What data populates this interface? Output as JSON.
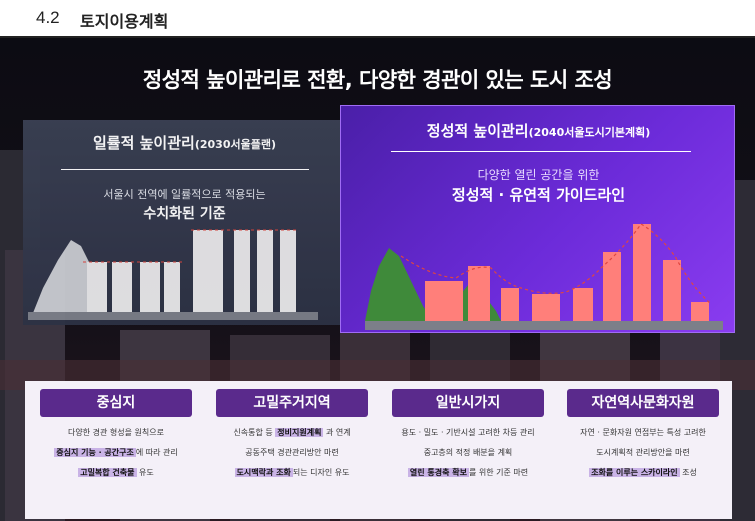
{
  "header": {
    "number": "4.2",
    "title": "토지이용계획"
  },
  "headline": "정성적 높이관리로 전환, 다양한 경관이 있는 도시 조성",
  "left_panel": {
    "title": "일률적 높이관리",
    "title_note": "(2030서울플랜)",
    "subtitle": "서울시 전역에 일률적으로 적용되는",
    "key": "수치화된 기준"
  },
  "right_panel": {
    "title": "정성적 높이관리",
    "title_note": "(2040서울도시기본계획)",
    "subtitle": "다양한 열린 공간을 위한",
    "key": "정성적 · 유연적 가이드라인"
  },
  "cards": [
    {
      "tab": "중심지",
      "lines": [
        {
          "pre": "다양한 경관 형성을 원칙으로",
          "hl": "",
          "post": ""
        },
        {
          "pre": "",
          "hl": "중심지 기능 · 공간구조",
          "post": "에 따라 관리"
        },
        {
          "pre": "",
          "hl": "고밀복합 건축물",
          "post": " 유도"
        }
      ]
    },
    {
      "tab": "고밀주거지역",
      "lines": [
        {
          "pre": "신속통합 등 ",
          "hl": "정비지원계획",
          "post": " 과 연계"
        },
        {
          "pre": "공동주택 경관관리방안 마련",
          "hl": "",
          "post": ""
        },
        {
          "pre": "",
          "hl": "도시맥락과 조화",
          "post": "되는 디자인 유도"
        }
      ]
    },
    {
      "tab": "일반시가지",
      "lines": [
        {
          "pre": "용도 · 밀도 · 기반시설 고려한 차등 관리",
          "hl": "",
          "post": ""
        },
        {
          "pre": "중고층의 적정 배분을 계획",
          "hl": "",
          "post": ""
        },
        {
          "pre": "",
          "hl": "열린 통경축 확보",
          "post": "를 위한 기준 마련"
        }
      ]
    },
    {
      "tab": "자연역사문화자원",
      "lines": [
        {
          "pre": "자연 · 문화자원 연접부는 특성 고려한",
          "hl": "",
          "post": ""
        },
        {
          "pre": "도시계획적 관리방안을 마련",
          "hl": "",
          "post": ""
        },
        {
          "pre": "",
          "hl": "조화를 이루는 스카이라인",
          "post": " 조성"
        }
      ]
    }
  ],
  "colors": {
    "left_panel": "#353a4e",
    "right_panel": "#6c2bd9",
    "bars_left": "#e8e8ea",
    "bars_right": "#ff7f7a",
    "hill_left": "#c9cbd1",
    "hill_right": "#3f8a3a",
    "tab": "#5a2a8c",
    "highlight": "#c9b3e6"
  }
}
